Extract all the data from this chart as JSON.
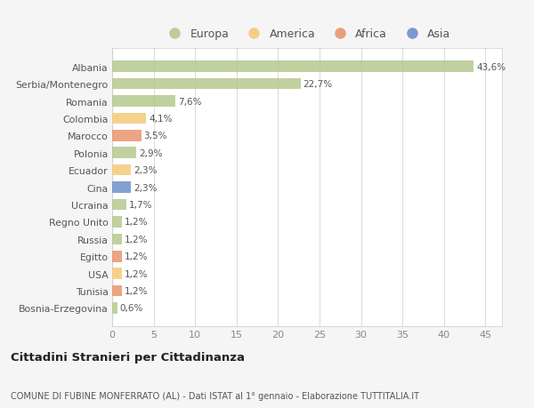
{
  "countries": [
    "Albania",
    "Serbia/Montenegro",
    "Romania",
    "Colombia",
    "Marocco",
    "Polonia",
    "Ecuador",
    "Cina",
    "Ucraina",
    "Regno Unito",
    "Russia",
    "Egitto",
    "USA",
    "Tunisia",
    "Bosnia-Erzegovina"
  ],
  "values": [
    43.6,
    22.7,
    7.6,
    4.1,
    3.5,
    2.9,
    2.3,
    2.3,
    1.7,
    1.2,
    1.2,
    1.2,
    1.2,
    1.2,
    0.6
  ],
  "labels": [
    "43,6%",
    "22,7%",
    "7,6%",
    "4,1%",
    "3,5%",
    "2,9%",
    "2,3%",
    "2,3%",
    "1,7%",
    "1,2%",
    "1,2%",
    "1,2%",
    "1,2%",
    "1,2%",
    "0,6%"
  ],
  "colors": [
    "#b5c98e",
    "#b5c98e",
    "#b5c98e",
    "#f5c97a",
    "#e8956d",
    "#b5c98e",
    "#f5c97a",
    "#6e8fc9",
    "#b5c98e",
    "#b5c98e",
    "#b5c98e",
    "#e8956d",
    "#f5c97a",
    "#e8956d",
    "#b5c98e"
  ],
  "legend_labels": [
    "Europa",
    "America",
    "Africa",
    "Asia"
  ],
  "legend_colors": [
    "#b5c98e",
    "#f5c97a",
    "#e8956d",
    "#6e8fc9"
  ],
  "xlim": [
    0,
    47
  ],
  "xticks": [
    0,
    5,
    10,
    15,
    20,
    25,
    30,
    35,
    40,
    45
  ],
  "title1": "Cittadini Stranieri per Cittadinanza",
  "title2": "COMUNE DI FUBINE MONFERRATO (AL) - Dati ISTAT al 1° gennaio - Elaborazione TUTTITALIA.IT",
  "background_color": "#f5f5f5",
  "plot_bg": "#ffffff",
  "bar_height": 0.65
}
